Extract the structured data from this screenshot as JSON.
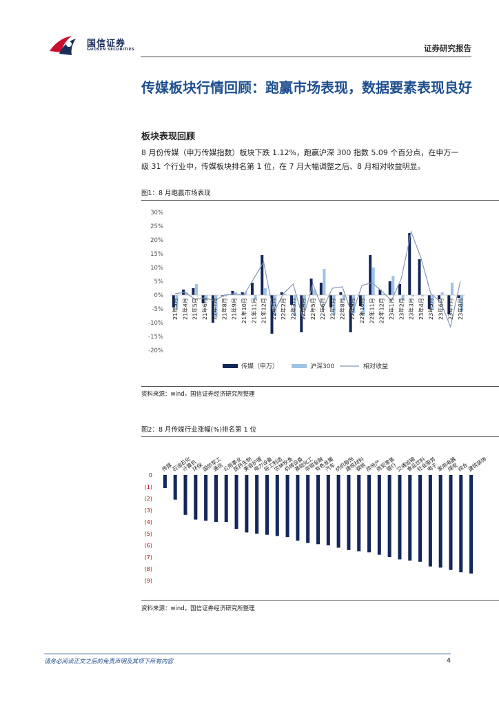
{
  "header": {
    "logo_cn": "国信证券",
    "logo_en": "GUOSEN SECURITIES",
    "report_type": "证券研究报告"
  },
  "section": {
    "title": "传媒板块行情回顾：跑赢市场表现，数据要素表现良好",
    "subheading": "板块表现回顾",
    "paragraph": "8 月份传媒（申万传媒指数）板块下跌 1.12%，跑赢沪深 300 指数 5.09 个百分点，在申万一级 31 个行业中，传媒板块排名第 1 位，在 7 月大幅调整之后、8 月相对收益明显。"
  },
  "figure1": {
    "caption": "图1：8 月跑赢市场表现",
    "source": "资料来源：wind，国信证券经济研究所整理"
  },
  "figure2": {
    "caption": "图2：8 月传媒行业涨幅(%)排名第 1 位",
    "source": "资料来源：wind，国信证券经济研究所整理"
  },
  "footer": {
    "disclaimer": "请务必阅读正文之后的免责声明及其项下所有内容",
    "page": "4"
  },
  "colors": {
    "media": "#14275a",
    "hs300": "#9dc3e6",
    "relative": "#8497b0",
    "title": "#1f4f8f",
    "negative_label": "#c00000"
  },
  "chart_data": [
    {
      "type": "bar",
      "categories": [
        "21年3月",
        "21年4月",
        "21年5月",
        "21年6月",
        "21年7月",
        "21年8月",
        "21年9月",
        "21年10月",
        "21年11月",
        "21年12月",
        "22年1月",
        "22年2月",
        "22年3月",
        "22年4月",
        "22年5月",
        "22年6月",
        "22年7月",
        "22年8月",
        "22年9月",
        "22年10月",
        "22年11月",
        "22年12月",
        "23年1月",
        "23年2月",
        "23年3月",
        "23年4月",
        "23年5月",
        "23年6月",
        "23年7月",
        "23年8月"
      ],
      "series": [
        {
          "name": "传媒（申万）",
          "kind": "bar",
          "values": [
            -4.5,
            2.0,
            2.5,
            -3.0,
            -10.0,
            -0.5,
            1.5,
            1.0,
            4.5,
            14.5,
            -14.0,
            1.0,
            -3.5,
            -13.5,
            6.0,
            4.5,
            -4.5,
            1.0,
            -13.5,
            -4.0,
            14.5,
            2.0,
            5.0,
            4.0,
            22.5,
            13.0,
            -5.0,
            -1.5,
            -7.0,
            -1.0
          ]
        },
        {
          "name": "沪深300",
          "kind": "bar",
          "values": [
            -5.0,
            1.0,
            4.0,
            -2.0,
            -8.0,
            -0.5,
            1.0,
            1.0,
            -1.5,
            2.5,
            -7.5,
            0.5,
            -7.5,
            -5.0,
            2.0,
            9.5,
            -7.0,
            -2.0,
            -6.5,
            -7.5,
            10.0,
            0.5,
            7.0,
            -2.0,
            -0.5,
            -0.5,
            -5.5,
            1.0,
            4.5,
            -6.0
          ]
        },
        {
          "name": "相对收益",
          "kind": "line",
          "values": [
            0.5,
            1.0,
            -1.5,
            -1.0,
            -2.0,
            0.0,
            0.5,
            0.0,
            6.0,
            12.0,
            -6.5,
            0.5,
            4.0,
            -8.5,
            4.0,
            -5.0,
            2.5,
            3.0,
            -7.0,
            3.5,
            4.5,
            1.5,
            -2.0,
            6.0,
            23.0,
            13.5,
            0.5,
            -2.5,
            -11.5,
            5.0
          ]
        }
      ],
      "ylim": [
        -20,
        30
      ],
      "yticks": [
        "-20%",
        "-15%",
        "-10%",
        "-5%",
        "0%",
        "5%",
        "10%",
        "15%",
        "20%",
        "25%",
        "30%"
      ],
      "legend_position": "bottom"
    },
    {
      "type": "bar",
      "categories": [
        "传媒",
        "石油石化",
        "计算机",
        "环保",
        "国防军工",
        "通信",
        "公用事业",
        "医药生物",
        "美容护理",
        "电力设备",
        "轻工制造",
        "农林牧渔",
        "机械设备",
        "基础化工",
        "非银金融",
        "有色金属",
        "汽车",
        "纺织服饰",
        "建筑材料",
        "钢铁",
        "房地产",
        "商贸零售",
        "银行",
        "交通运输",
        "食品饮料",
        "社会服务",
        "电子",
        "家用电器",
        "煤炭",
        "综合",
        "建筑装饰"
      ],
      "values": [
        -1.12,
        -2.1,
        -3.4,
        -3.8,
        -3.9,
        -4.0,
        -4.0,
        -4.6,
        -4.9,
        -5.0,
        -5.1,
        -5.2,
        -5.3,
        -5.6,
        -5.8,
        -5.9,
        -6.0,
        -6.2,
        -6.4,
        -6.5,
        -6.6,
        -6.8,
        -7.0,
        -7.2,
        -7.3,
        -7.4,
        -7.8,
        -7.9,
        -8.1,
        -8.3,
        -8.4
      ],
      "ylim": [
        -9,
        0
      ],
      "yticks": [
        "0",
        "(1)",
        "(2)",
        "(3)",
        "(4)",
        "(5)",
        "(6)",
        "(7)",
        "(8)",
        "(9)"
      ]
    }
  ]
}
